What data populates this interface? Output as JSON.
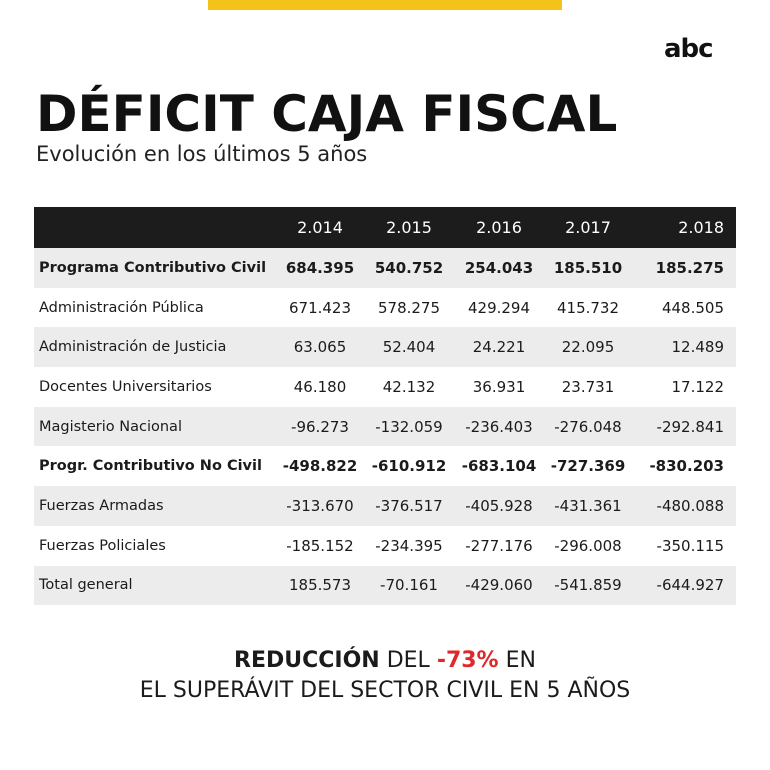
{
  "brand": {
    "logo": "abc",
    "accent_color": "#f5c21b",
    "highlight_color": "#e0282b"
  },
  "header": {
    "title": "DÉFICIT CAJA FISCAL",
    "subtitle": "Evolución en los últimos 5 años"
  },
  "chart_data": {
    "type": "table",
    "columns": [
      "2.014",
      "2.015",
      "2.016",
      "2.017",
      "2.018"
    ],
    "rows": [
      {
        "label": "Programa Contributivo Civil",
        "values": [
          "684.395",
          "540.752",
          "254.043",
          "185.510",
          "185.275"
        ],
        "bold": true,
        "shaded": true
      },
      {
        "label": "Administración Pública",
        "values": [
          "671.423",
          "578.275",
          "429.294",
          "415.732",
          "448.505"
        ],
        "bold": false,
        "shaded": false
      },
      {
        "label": "Administración de Justicia",
        "values": [
          "63.065",
          "52.404",
          "24.221",
          "22.095",
          "12.489"
        ],
        "bold": false,
        "shaded": true
      },
      {
        "label": "Docentes Universitarios",
        "values": [
          "46.180",
          "42.132",
          "36.931",
          "23.731",
          "17.122"
        ],
        "bold": false,
        "shaded": false
      },
      {
        "label": "Magisterio Nacional",
        "values": [
          "-96.273",
          "-132.059",
          "-236.403",
          "-276.048",
          "-292.841"
        ],
        "bold": false,
        "shaded": true
      },
      {
        "label": "Progr. Contributivo No Civil",
        "values": [
          "-498.822",
          "-610.912",
          "-683.104",
          "-727.369",
          "-830.203"
        ],
        "bold": true,
        "shaded": false
      },
      {
        "label": "Fuerzas Armadas",
        "values": [
          "-313.670",
          "-376.517",
          "-405.928",
          "-431.361",
          "-480.088"
        ],
        "bold": false,
        "shaded": true
      },
      {
        "label": "Fuerzas Policiales",
        "values": [
          "-185.152",
          "-234.395",
          "-277.176",
          "-296.008",
          "-350.115"
        ],
        "bold": false,
        "shaded": false
      },
      {
        "label": "Total general",
        "values": [
          "185.573",
          "-70.161",
          "-429.060",
          "-541.859",
          "-644.927"
        ],
        "bold": false,
        "shaded": true
      }
    ]
  },
  "footer": {
    "part1": "REDUCCIÓN",
    "part2": " DEL ",
    "part3": "-73%",
    "part4": " EN",
    "line2": "EL SUPERÁVIT DEL SECTOR CIVIL EN 5 AÑOS"
  }
}
